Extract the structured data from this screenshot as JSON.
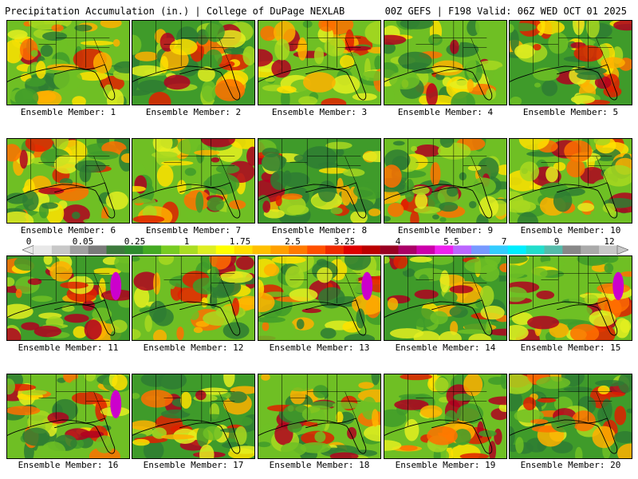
{
  "header": {
    "title": "Precipitation Accumulation (in.) | College of DuPage NEXLAB",
    "valid": "00Z GEFS | F198 Valid: 06Z WED OCT 01 2025"
  },
  "colorbar": {
    "labels": [
      "0",
      "0.05",
      "0.25",
      "1",
      "1.75",
      "2.5",
      "3.25",
      "4",
      "5.5",
      "7",
      "9",
      "12"
    ],
    "colors": [
      "#e8e8e8",
      "#c8c8c8",
      "#a0a0a0",
      "#7a7a7a",
      "#3c7a3c",
      "#2e8b2e",
      "#44aa22",
      "#77cc22",
      "#aadd22",
      "#ddee22",
      "#ffff00",
      "#ffe000",
      "#ffc000",
      "#ffa000",
      "#ff7a00",
      "#ff5000",
      "#ee2a00",
      "#dd0000",
      "#bb0000",
      "#990022",
      "#aa0066",
      "#cc00aa",
      "#ee22ee",
      "#bb66ff",
      "#7799ff",
      "#33ccff",
      "#00eeff",
      "#22ddcc",
      "#55bbaa",
      "#888888",
      "#aaaaaa",
      "#c8c8c8"
    ]
  },
  "members": [
    {
      "label": "Ensemble Member: 1"
    },
    {
      "label": "Ensemble Member: 2"
    },
    {
      "label": "Ensemble Member: 3"
    },
    {
      "label": "Ensemble Member: 4"
    },
    {
      "label": "Ensemble Member: 5"
    },
    {
      "label": "Ensemble Member: 6"
    },
    {
      "label": "Ensemble Member: 7"
    },
    {
      "label": "Ensemble Member: 8"
    },
    {
      "label": "Ensemble Member: 9"
    },
    {
      "label": "Ensemble Member: 10"
    },
    {
      "label": "Ensemble Member: 11"
    },
    {
      "label": "Ensemble Member: 12"
    },
    {
      "label": "Ensemble Member: 13"
    },
    {
      "label": "Ensemble Member: 14"
    },
    {
      "label": "Ensemble Member: 15"
    },
    {
      "label": "Ensemble Member: 16"
    },
    {
      "label": "Ensemble Member: 17"
    },
    {
      "label": "Ensemble Member: 18"
    },
    {
      "label": "Ensemble Member: 19"
    },
    {
      "label": "Ensemble Member: 20"
    }
  ]
}
